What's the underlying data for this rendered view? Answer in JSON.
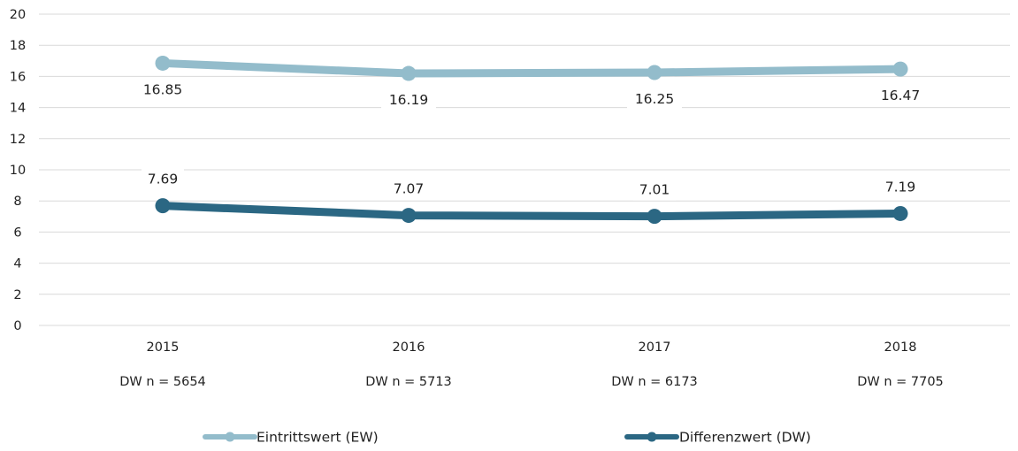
{
  "chart_data": {
    "type": "line",
    "categories": [
      "2015",
      "2016",
      "2017",
      "2018"
    ],
    "category_sublabels": [
      "DW n = 5654",
      "DW n = 5713",
      "DW n = 6173",
      "DW n = 7705"
    ],
    "ylim": [
      0,
      20
    ],
    "yticks": [
      0,
      2,
      4,
      6,
      8,
      10,
      12,
      14,
      16,
      18,
      20
    ],
    "grid": true,
    "legend_position": "bottom",
    "series": [
      {
        "name": "Eintrittswert (EW)",
        "values": [
          16.85,
          16.19,
          16.25,
          16.47
        ],
        "labels": [
          "16.85",
          "16.19",
          "16.25",
          "16.47"
        ],
        "color": "#93bccb"
      },
      {
        "name": "Differenzwert (DW)",
        "values": [
          7.69,
          7.07,
          7.01,
          7.19
        ],
        "labels": [
          "7.69",
          "7.07",
          "7.01",
          "7.19"
        ],
        "color": "#2b6783"
      }
    ]
  }
}
